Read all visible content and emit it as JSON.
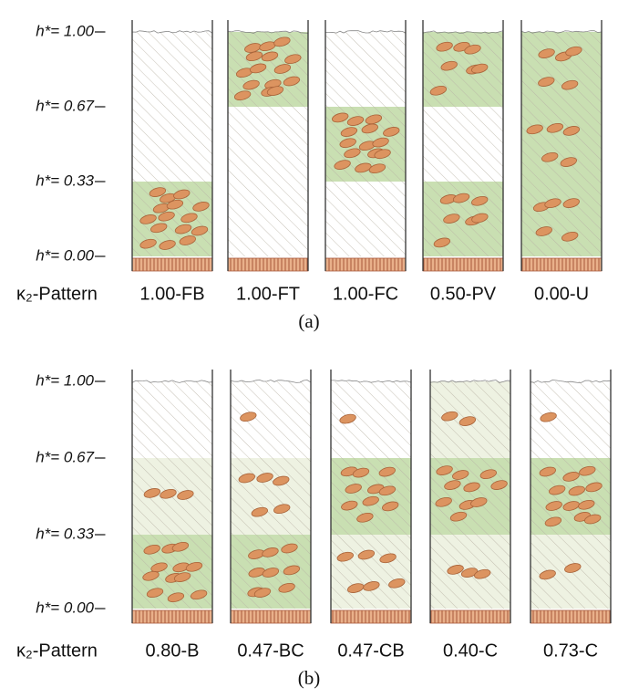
{
  "panel_a": {
    "y_labels": [
      "h*= 1.00",
      "h*= 0.67",
      "h*= 0.33",
      "h*= 0.00"
    ],
    "row_label": "κ₂-Pattern",
    "patterns": [
      "1.00-FB",
      "1.00-FT",
      "1.00-FC",
      "0.50-PV",
      "0.00-U"
    ],
    "caption": "(a)"
  },
  "panel_b": {
    "y_labels": [
      "h*= 1.00",
      "h*= 0.67",
      "h*= 0.33",
      "h*= 0.00"
    ],
    "row_label": "κ₂-Pattern",
    "patterns": [
      "0.80-B",
      "0.47-BC",
      "0.47-CB",
      "0.40-C",
      "0.73-C"
    ],
    "caption": "(b)"
  }
}
